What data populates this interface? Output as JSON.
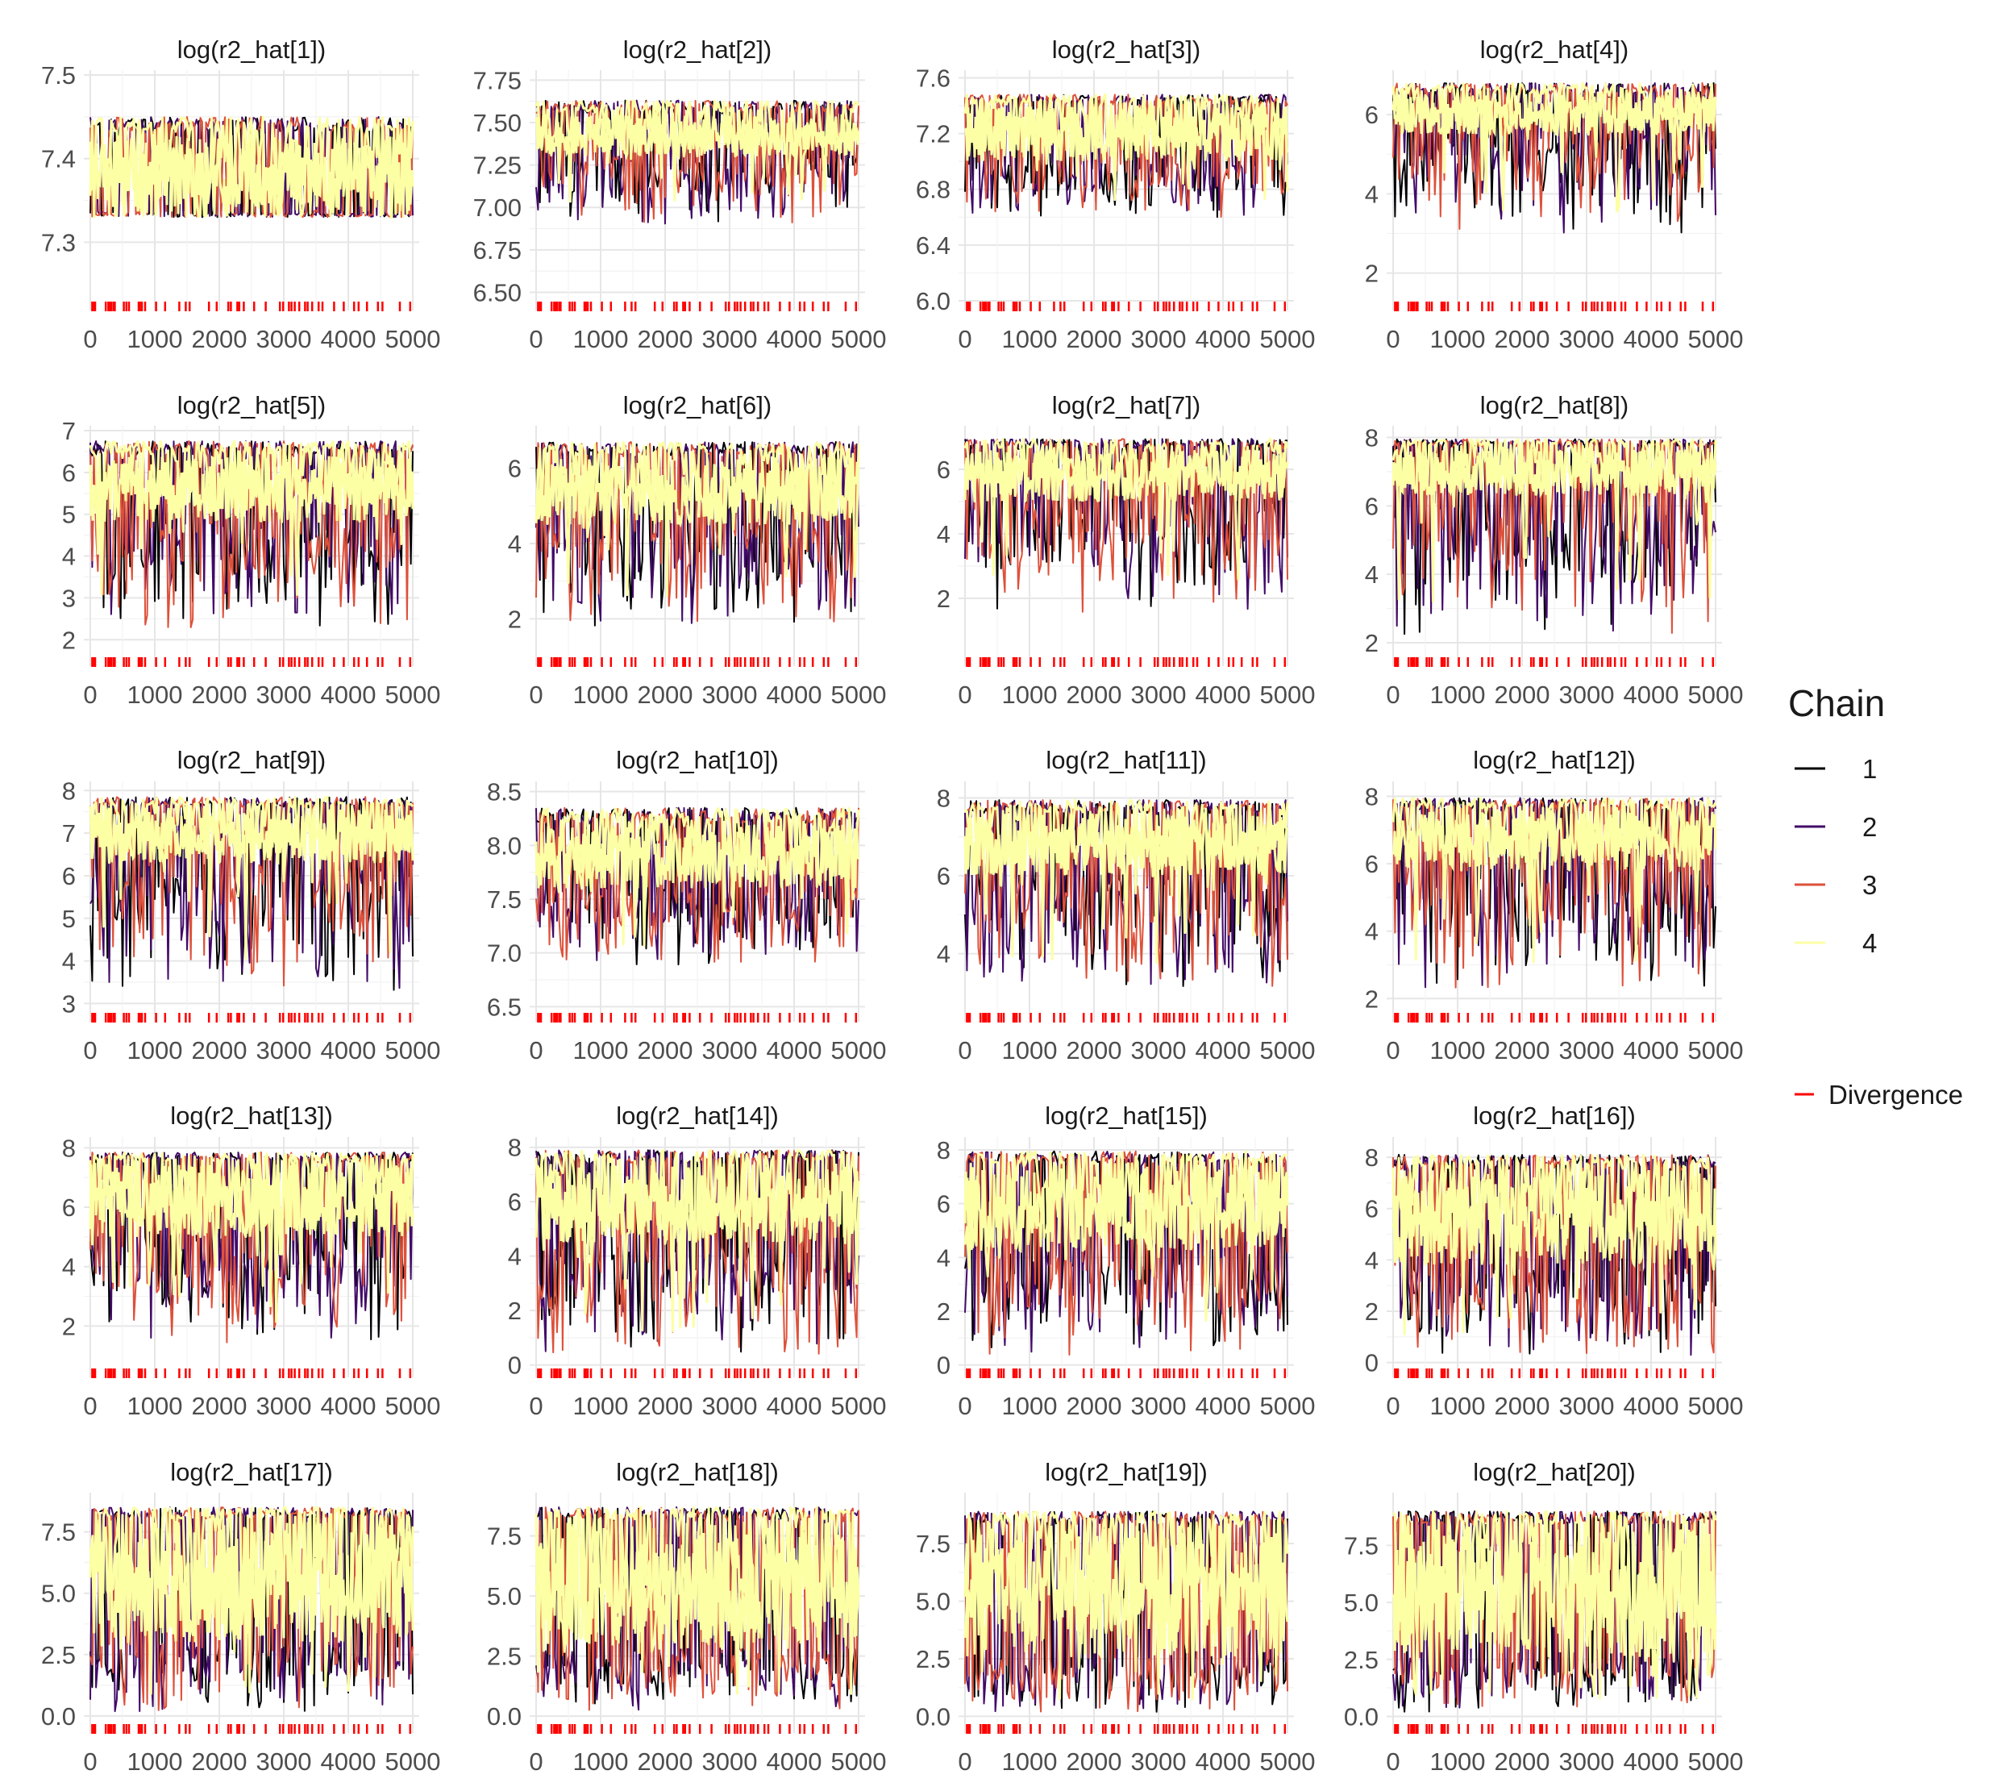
{
  "chart_data": {
    "type": "line",
    "title": "",
    "xlabel": "",
    "ylabel": "",
    "x_range": [
      0,
      5000
    ],
    "x_ticks": [
      "0",
      "1000",
      "2000",
      "3000",
      "4000",
      "5000"
    ],
    "grid": true,
    "legend": {
      "title": "Chain",
      "placement": "right",
      "entries": [
        {
          "label": "1",
          "color": "#000004"
        },
        {
          "label": "2",
          "color": "#420A68"
        },
        {
          "label": "3",
          "color": "#DD513A"
        },
        {
          "label": "4",
          "color": "#FCFFA4"
        }
      ],
      "divergence": {
        "label": "Divergence",
        "color": "#FF0000"
      }
    },
    "divergences_at": [
      30,
      60,
      75,
      240,
      280,
      300,
      325,
      360,
      380,
      520,
      560,
      600,
      750,
      770,
      800,
      850,
      1020,
      1160,
      1380,
      1480,
      1540,
      1840,
      1960,
      2140,
      2180,
      2280,
      2310,
      2380,
      2540,
      2720,
      2940,
      2990,
      3080,
      3120,
      3170,
      3240,
      3330,
      3370,
      3440,
      3540,
      3600,
      3780,
      3930,
      4090,
      4160,
      4290,
      4460,
      4530,
      4800,
      4960
    ],
    "panels": [
      {
        "title": "log(r2_hat[1])",
        "ylim": [
          7.23,
          7.5
        ],
        "y_ticks": [
          7.3,
          7.4,
          7.5
        ],
        "y_labels": [
          "7.3",
          "7.4",
          "7.5"
        ],
        "band": [
          7.33,
          7.43
        ],
        "upper": 7.45,
        "min_value": 7.24,
        "mean": 7.38,
        "lower_extent": 0.3
      },
      {
        "title": "log(r2_hat[2])",
        "ylim": [
          6.45,
          7.78
        ],
        "y_ticks": [
          6.5,
          6.75,
          7.0,
          7.25,
          7.5,
          7.75
        ],
        "y_labels": [
          "6.50",
          "6.75",
          "7.00",
          "7.25",
          "7.50",
          "7.75"
        ],
        "band": [
          7.3,
          7.55
        ],
        "upper": 7.63,
        "min_value": 6.45,
        "mean": 7.45,
        "lower_extent": 0.55
      },
      {
        "title": "log(r2_hat[3])",
        "ylim": [
          6.0,
          7.62
        ],
        "y_ticks": [
          6.0,
          6.4,
          6.8,
          7.2,
          7.6
        ],
        "y_labels": [
          "6.0",
          "6.4",
          "6.8",
          "7.2",
          "7.6"
        ],
        "band": [
          7.0,
          7.4
        ],
        "upper": 7.48,
        "min_value": 6.05,
        "mean": 7.25,
        "lower_extent": 0.55
      },
      {
        "title": "log(r2_hat[4])",
        "ylim": [
          1.3,
          7.0
        ],
        "y_ticks": [
          2,
          4,
          6
        ],
        "y_labels": [
          "2",
          "4",
          "6"
        ],
        "band": [
          5.5,
          6.5
        ],
        "upper": 6.8,
        "min_value": 1.0,
        "mean": 6.0,
        "lower_extent": 0.6
      },
      {
        "title": "log(r2_hat[5])",
        "ylim": [
          1.6,
          7.0
        ],
        "y_ticks": [
          2,
          3,
          4,
          5,
          6,
          7
        ],
        "y_labels": [
          "2",
          "3",
          "4",
          "5",
          "6",
          "7"
        ],
        "band": [
          4.8,
          6.4
        ],
        "upper": 6.75,
        "min_value": 1.7,
        "mean": 5.6,
        "lower_extent": 0.85
      },
      {
        "title": "log(r2_hat[6])",
        "ylim": [
          1.0,
          7.0
        ],
        "y_ticks": [
          2,
          4,
          6
        ],
        "y_labels": [
          "2",
          "4",
          "6"
        ],
        "band": [
          4.5,
          6.3
        ],
        "upper": 6.7,
        "min_value": 1.1,
        "mean": 5.5,
        "lower_extent": 0.85
      },
      {
        "title": "log(r2_hat[7])",
        "ylim": [
          0.2,
          7.2
        ],
        "y_ticks": [
          2,
          4,
          6
        ],
        "y_labels": [
          "2",
          "4",
          "6"
        ],
        "band": [
          5.0,
          6.6
        ],
        "upper": 6.95,
        "min_value": 0.5,
        "mean": 5.9,
        "lower_extent": 0.8
      },
      {
        "title": "log(r2_hat[8])",
        "ylim": [
          1.6,
          8.2
        ],
        "y_ticks": [
          2,
          4,
          6,
          8
        ],
        "y_labels": [
          "2",
          "4",
          "6",
          "8"
        ],
        "band": [
          6.3,
          7.7
        ],
        "upper": 7.95,
        "min_value": 1.7,
        "mean": 7.1,
        "lower_extent": 0.9
      },
      {
        "title": "log(r2_hat[9])",
        "ylim": [
          2.8,
          8.1
        ],
        "y_ticks": [
          3,
          4,
          5,
          6,
          7,
          8
        ],
        "y_labels": [
          "3",
          "4",
          "5",
          "6",
          "7",
          "8"
        ],
        "band": [
          6.3,
          7.6
        ],
        "upper": 7.85,
        "min_value": 2.9,
        "mean": 7.0,
        "lower_extent": 0.9
      },
      {
        "title": "log(r2_hat[10])",
        "ylim": [
          6.45,
          8.55
        ],
        "y_ticks": [
          6.5,
          7.0,
          7.5,
          8.0,
          8.5
        ],
        "y_labels": [
          "6.5",
          "7.0",
          "7.5",
          "8.0",
          "8.5"
        ],
        "band": [
          7.6,
          8.2
        ],
        "upper": 8.35,
        "min_value": 6.5,
        "mean": 7.95,
        "lower_extent": 0.75
      },
      {
        "title": "log(r2_hat[11])",
        "ylim": [
          2.5,
          8.3
        ],
        "y_ticks": [
          4,
          6,
          8
        ],
        "y_labels": [
          "4",
          "6",
          "8"
        ],
        "band": [
          6.0,
          7.6
        ],
        "upper": 7.95,
        "min_value": 2.6,
        "mean": 7.0,
        "lower_extent": 0.9
      },
      {
        "title": "log(r2_hat[12])",
        "ylim": [
          1.6,
          8.3
        ],
        "y_ticks": [
          2,
          4,
          6,
          8
        ],
        "y_labels": [
          "2",
          "4",
          "6",
          "8"
        ],
        "band": [
          5.8,
          7.6
        ],
        "upper": 7.95,
        "min_value": 1.8,
        "mean": 6.9,
        "lower_extent": 0.9
      },
      {
        "title": "log(r2_hat[13])",
        "ylim": [
          0.6,
          8.2
        ],
        "y_ticks": [
          2,
          4,
          6,
          8
        ],
        "y_labels": [
          "2",
          "4",
          "6",
          "8"
        ],
        "band": [
          5.0,
          7.5
        ],
        "upper": 7.85,
        "min_value": 0.8,
        "mean": 6.5,
        "lower_extent": 0.9
      },
      {
        "title": "log(r2_hat[14])",
        "ylim": [
          -0.1,
          8.2
        ],
        "y_ticks": [
          0,
          2,
          4,
          6,
          8
        ],
        "y_labels": [
          "0",
          "2",
          "4",
          "6",
          "8"
        ],
        "band": [
          4.5,
          7.4
        ],
        "upper": 7.9,
        "min_value": 0.1,
        "mean": 6.2,
        "lower_extent": 0.95
      },
      {
        "title": "log(r2_hat[15])",
        "ylim": [
          -0.1,
          8.3
        ],
        "y_ticks": [
          0,
          2,
          4,
          6,
          8
        ],
        "y_labels": [
          "0",
          "2",
          "4",
          "6",
          "8"
        ],
        "band": [
          4.2,
          7.4
        ],
        "upper": 7.95,
        "min_value": 0.05,
        "mean": 6.0,
        "lower_extent": 0.95
      },
      {
        "title": "log(r2_hat[16])",
        "ylim": [
          -0.2,
          8.6
        ],
        "y_ticks": [
          0,
          2,
          4,
          6,
          8
        ],
        "y_labels": [
          "0",
          "2",
          "4",
          "6",
          "8"
        ],
        "band": [
          3.8,
          7.5
        ],
        "upper": 8.1,
        "min_value": 0.0,
        "mean": 5.8,
        "lower_extent": 0.95
      },
      {
        "title": "log(r2_hat[17])",
        "ylim": [
          -0.3,
          8.9
        ],
        "y_ticks": [
          0,
          2.5,
          5.0,
          7.5
        ],
        "y_labels": [
          "0.0",
          "2.5",
          "5.0",
          "7.5"
        ],
        "band": [
          3.0,
          8.0
        ],
        "upper": 8.5,
        "min_value": 0.0,
        "mean": 6.0,
        "lower_extent": 0.97
      },
      {
        "title": "log(r2_hat[18])",
        "ylim": [
          -0.3,
          9.1
        ],
        "y_ticks": [
          0,
          2.5,
          5.0,
          7.5
        ],
        "y_labels": [
          "0.0",
          "2.5",
          "5.0",
          "7.5"
        ],
        "band": [
          2.8,
          8.1
        ],
        "upper": 8.7,
        "min_value": 0.0,
        "mean": 6.0,
        "lower_extent": 0.97
      },
      {
        "title": "log(r2_hat[19])",
        "ylim": [
          -0.3,
          9.5
        ],
        "y_ticks": [
          0,
          2.5,
          5.0,
          7.5
        ],
        "y_labels": [
          "0.0",
          "2.5",
          "5.0",
          "7.5"
        ],
        "band": [
          2.6,
          8.3
        ],
        "upper": 8.9,
        "min_value": 0.0,
        "mean": 6.0,
        "lower_extent": 0.97
      },
      {
        "title": "log(r2_hat[20])",
        "ylim": [
          -0.3,
          9.6
        ],
        "y_ticks": [
          0,
          2.5,
          5.0,
          7.5
        ],
        "y_labels": [
          "0.0",
          "2.5",
          "5.0",
          "7.5"
        ],
        "band": [
          2.6,
          8.4
        ],
        "upper": 9.0,
        "min_value": 0.0,
        "mean": 6.0,
        "lower_extent": 0.97
      }
    ]
  }
}
